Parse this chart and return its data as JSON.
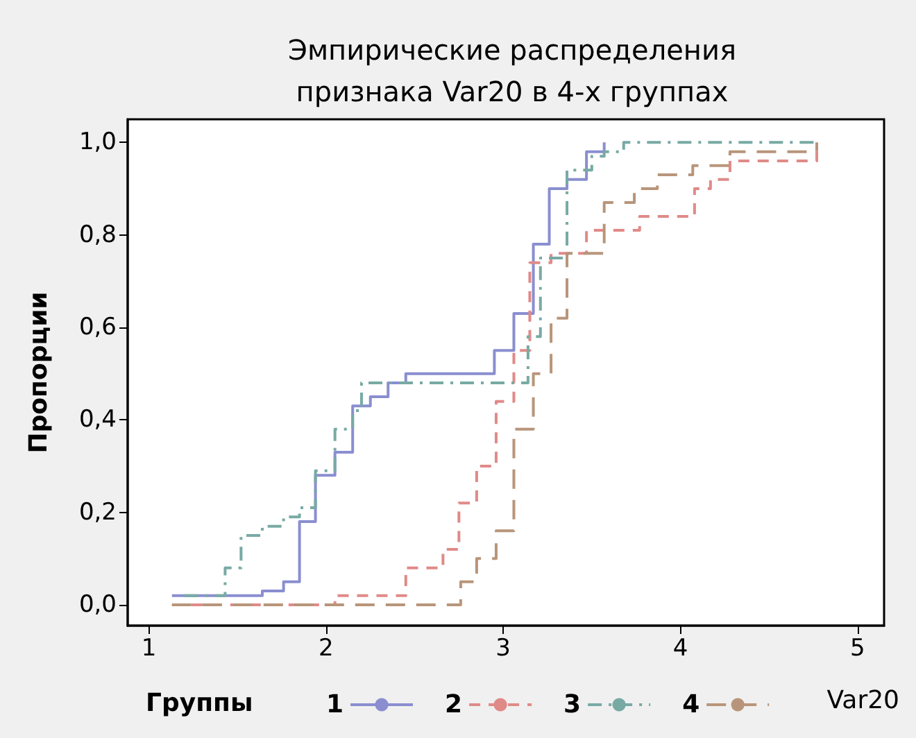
{
  "chart_data": {
    "type": "step",
    "title": "Эмпирические распределения\nпризнака Var20 в 4-х группах",
    "xlabel": "Var20",
    "ylabel": "Пропорции",
    "legend_title": "Группы",
    "xlim": [
      0.88,
      5.15
    ],
    "ylim": [
      -0.045,
      1.05
    ],
    "xticks": [
      1,
      2,
      3,
      4,
      5
    ],
    "yticks": [
      {
        "value": 0,
        "label": "0,0"
      },
      {
        "value": 0.2,
        "label": "0,2"
      },
      {
        "value": 0.4,
        "label": "0,4"
      },
      {
        "value": 0.6,
        "label": "0,6"
      },
      {
        "value": 0.8,
        "label": "0,8"
      },
      {
        "value": 1,
        "label": "1,0"
      }
    ],
    "grid": false,
    "legend": "bottom",
    "marker": "none",
    "series": [
      {
        "name": "1",
        "color": "#8a8ed0",
        "line_style": "solid",
        "x": [
          1.13,
          1.64,
          1.76,
          1.85,
          1.94,
          2.05,
          2.15,
          2.25,
          2.35,
          2.45,
          2.95,
          3.06,
          3.17,
          3.26,
          3.36,
          3.47,
          3.57
        ],
        "values": [
          0.02,
          0.03,
          0.05,
          0.18,
          0.28,
          0.33,
          0.43,
          0.45,
          0.48,
          0.5,
          0.55,
          0.63,
          0.78,
          0.9,
          0.92,
          0.98,
          1.0
        ]
      },
      {
        "name": "2",
        "color": "#e08a88",
        "line_style": "dashed",
        "x": [
          1.13,
          2.05,
          2.45,
          2.66,
          2.75,
          2.85,
          2.96,
          3.06,
          3.15,
          3.27,
          3.47,
          3.77,
          4.08,
          4.17,
          4.28,
          4.77
        ],
        "values": [
          0.0,
          0.02,
          0.08,
          0.12,
          0.22,
          0.3,
          0.44,
          0.55,
          0.74,
          0.76,
          0.81,
          0.84,
          0.9,
          0.92,
          0.96,
          1.0
        ]
      },
      {
        "name": "3",
        "color": "#78aaa4",
        "line_style": "dashed",
        "x": [
          1.2,
          1.43,
          1.52,
          1.64,
          1.76,
          1.85,
          1.94,
          2.05,
          2.15,
          2.2,
          3.14,
          3.21,
          3.36,
          3.5,
          3.57,
          3.68,
          4.77
        ],
        "values": [
          0.02,
          0.08,
          0.15,
          0.17,
          0.19,
          0.21,
          0.29,
          0.38,
          0.42,
          0.48,
          0.58,
          0.75,
          0.94,
          0.97,
          0.98,
          1.0,
          1.0
        ]
      },
      {
        "name": "4",
        "color": "#b8957a",
        "line_style": "dashed",
        "x": [
          1.13,
          2.76,
          2.85,
          2.96,
          3.06,
          3.17,
          3.27,
          3.36,
          3.57,
          3.74,
          3.87,
          4.07,
          4.28,
          4.77
        ],
        "values": [
          0.0,
          0.05,
          0.1,
          0.16,
          0.38,
          0.5,
          0.62,
          0.76,
          0.87,
          0.9,
          0.93,
          0.95,
          0.98,
          1.0
        ]
      }
    ]
  }
}
